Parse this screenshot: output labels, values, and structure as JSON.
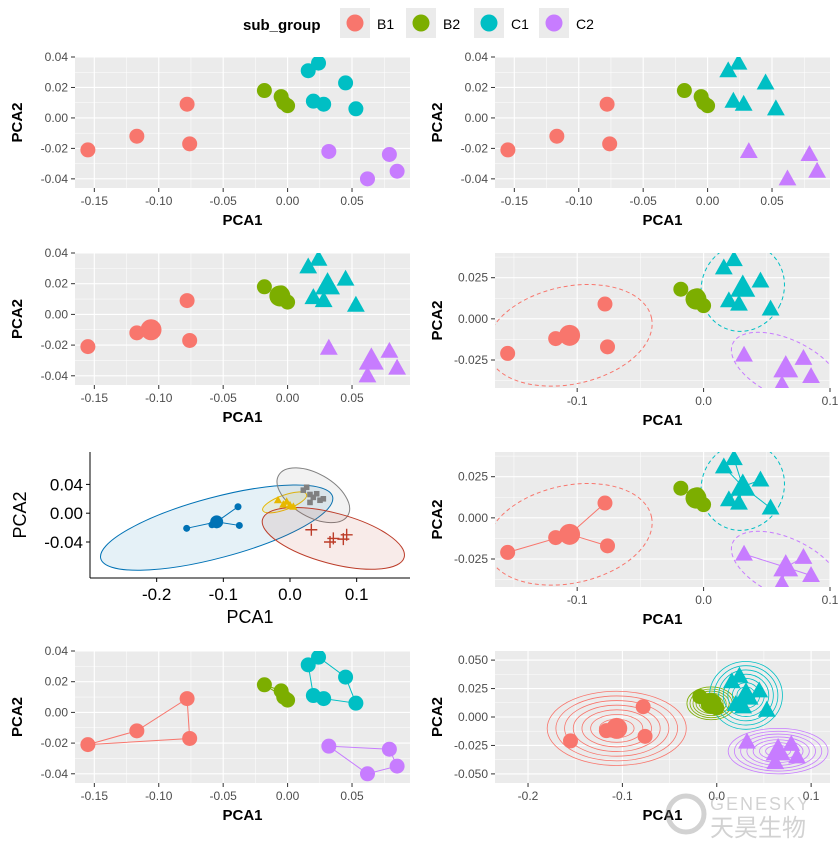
{
  "legend": {
    "title": "sub_group",
    "items": [
      {
        "label": "B1",
        "color": "#F8766D"
      },
      {
        "label": "B2",
        "color": "#7CAE00"
      },
      {
        "label": "C1",
        "color": "#00BFC4"
      },
      {
        "label": "C2",
        "color": "#C77CFF"
      }
    ]
  },
  "watermark": {
    "latin": "GENESKY",
    "chinese": "天昊生物"
  },
  "chart_data": [
    {
      "id": "p1",
      "type": "scatter",
      "theme": "grey",
      "xlabel": "PCA1",
      "ylabel": "PCA2",
      "xlim": [
        -0.165,
        0.095
      ],
      "ylim": [
        -0.046,
        0.04
      ],
      "xticks": [
        -0.15,
        -0.1,
        -0.05,
        0.0,
        0.05
      ],
      "xticklabels": [
        "-0.15",
        "-0.10",
        "-0.05",
        "0.00",
        "0.05"
      ],
      "yticks": [
        -0.04,
        -0.02,
        0.0,
        0.02,
        0.04
      ],
      "yticklabels": [
        "-0.04",
        "-0.02",
        "0.00",
        "0.02",
        "0.04"
      ],
      "shapes": false,
      "centroids": false
    },
    {
      "id": "p2",
      "type": "scatter",
      "theme": "grey",
      "xlabel": "PCA1",
      "ylabel": "PCA2",
      "xlim": [
        -0.165,
        0.095
      ],
      "ylim": [
        -0.046,
        0.04
      ],
      "xticks": [
        -0.15,
        -0.1,
        -0.05,
        0.0,
        0.05
      ],
      "xticklabels": [
        "-0.15",
        "-0.10",
        "-0.05",
        "0.00",
        "0.05"
      ],
      "yticks": [
        -0.04,
        -0.02,
        0.0,
        0.02,
        0.04
      ],
      "yticklabels": [
        "-0.04",
        "-0.02",
        "0.00",
        "0.02",
        "0.04"
      ],
      "shapes": true,
      "centroids": false
    },
    {
      "id": "p3",
      "type": "scatter",
      "theme": "grey",
      "xlabel": "PCA1",
      "ylabel": "PCA2",
      "xlim": [
        -0.165,
        0.095
      ],
      "ylim": [
        -0.046,
        0.04
      ],
      "xticks": [
        -0.15,
        -0.1,
        -0.05,
        0.0,
        0.05
      ],
      "xticklabels": [
        "-0.15",
        "-0.10",
        "-0.05",
        "0.00",
        "0.05"
      ],
      "yticks": [
        -0.04,
        -0.02,
        0.0,
        0.02,
        0.04
      ],
      "yticklabels": [
        "-0.04",
        "-0.02",
        "0.00",
        "0.02",
        "0.04"
      ],
      "shapes": true,
      "centroids": true
    },
    {
      "id": "p4",
      "type": "scatter",
      "theme": "grey",
      "xlabel": "PCA1",
      "ylabel": "PCA2",
      "xlim": [
        -0.165,
        0.1
      ],
      "ylim": [
        -0.042,
        0.04
      ],
      "xticks": [
        -0.1,
        0.0,
        0.1
      ],
      "xticklabels": [
        "-0.1",
        "0.0",
        "0.1"
      ],
      "yticks": [
        -0.025,
        0.0,
        0.025
      ],
      "yticklabels": [
        "-0.025",
        "0.000",
        "0.025"
      ],
      "shapes": true,
      "centroids": true,
      "ellipses": "dashed"
    },
    {
      "id": "p5",
      "type": "scatter",
      "theme": "classic",
      "xlabel": "PCA1",
      "ylabel": "PCA2",
      "xlim": [
        -0.3,
        0.18
      ],
      "ylim": [
        -0.09,
        0.085
      ],
      "xticks": [
        -0.2,
        -0.1,
        0.0,
        0.1
      ],
      "xticklabels": [
        "-0.2",
        "-0.1",
        "0.0",
        "0.1"
      ],
      "yticks": [
        -0.04,
        0.0,
        0.04
      ],
      "yticklabels": [
        "-0.04",
        "0.00",
        "0.04"
      ],
      "groups": [
        {
          "color": "#0072B5",
          "marker": "circle",
          "centroid": [
            -0.11,
            -0.012
          ],
          "points": [
            [
              -0.155,
              -0.021
            ],
            [
              -0.117,
              -0.016
            ],
            [
              -0.078,
              0.009
            ],
            [
              -0.076,
              -0.017
            ]
          ],
          "ellipse": {
            "cx": -0.11,
            "cy": -0.02,
            "rx": 0.18,
            "ry": 0.042,
            "angle": 15
          }
        },
        {
          "color": "#E7B800",
          "marker": "triangle",
          "points": [
            [
              -0.018,
              0.018
            ],
            [
              -0.005,
              0.016
            ],
            [
              -0.01,
              0.012
            ],
            [
              0.0,
              0.011
            ],
            [
              0.005,
              0.009
            ]
          ],
          "ellipse": {
            "cx": -0.008,
            "cy": 0.015,
            "rx": 0.035,
            "ry": 0.01,
            "angle": 20
          }
        },
        {
          "color": "#808080",
          "marker": "square",
          "points": [
            [
              0.02,
              0.032
            ],
            [
              0.025,
              0.036
            ],
            [
              0.03,
              0.026
            ],
            [
              0.035,
              0.022
            ],
            [
              0.04,
              0.027
            ],
            [
              0.045,
              0.018
            ],
            [
              0.05,
              0.02
            ],
            [
              0.03,
              0.015
            ]
          ],
          "ellipse": {
            "cx": 0.035,
            "cy": 0.025,
            "rx": 0.06,
            "ry": 0.03,
            "angle": -30
          }
        },
        {
          "color": "#BC3C29",
          "marker": "plus",
          "points": [
            [
              0.032,
              -0.023
            ],
            [
              0.06,
              -0.04
            ],
            [
              0.08,
              -0.036
            ],
            [
              0.085,
              -0.03
            ],
            [
              0.065,
              -0.035
            ]
          ],
          "ellipse": {
            "cx": 0.065,
            "cy": -0.035,
            "rx": 0.11,
            "ry": 0.035,
            "angle": -15
          }
        }
      ]
    },
    {
      "id": "p6",
      "type": "scatter",
      "theme": "grey",
      "xlabel": "PCA1",
      "ylabel": "PCA2",
      "xlim": [
        -0.165,
        0.1
      ],
      "ylim": [
        -0.042,
        0.04
      ],
      "xticks": [
        -0.1,
        0.0,
        0.1
      ],
      "xticklabels": [
        "-0.1",
        "0.0",
        "0.1"
      ],
      "yticks": [
        -0.025,
        0.0,
        0.025
      ],
      "yticklabels": [
        "-0.025",
        "0.000",
        "0.025"
      ],
      "shapes": true,
      "centroids": true,
      "ellipses": "dashed",
      "spokes": true
    },
    {
      "id": "p7",
      "type": "scatter",
      "theme": "grey",
      "xlabel": "PCA1",
      "ylabel": "PCA2",
      "xlim": [
        -0.165,
        0.095
      ],
      "ylim": [
        -0.046,
        0.04
      ],
      "xticks": [
        -0.15,
        -0.1,
        -0.05,
        0.0,
        0.05
      ],
      "xticklabels": [
        "-0.15",
        "-0.10",
        "-0.05",
        "0.00",
        "0.05"
      ],
      "yticks": [
        -0.04,
        -0.02,
        0.0,
        0.02,
        0.04
      ],
      "yticklabels": [
        "-0.04",
        "-0.02",
        "0.00",
        "0.02",
        "0.04"
      ],
      "shapes": false,
      "centroids": false,
      "hulls": true
    },
    {
      "id": "p8",
      "type": "scatter",
      "theme": "grey",
      "xlabel": "PCA1",
      "ylabel": "PCA2",
      "xlim": [
        -0.235,
        0.12
      ],
      "ylim": [
        -0.058,
        0.058
      ],
      "xticks": [
        -0.2,
        -0.1,
        0.0,
        0.1
      ],
      "xticklabels": [
        "-0.2",
        "-0.1",
        "0.0",
        "0.1"
      ],
      "yticks": [
        -0.05,
        -0.025,
        0.0,
        0.025,
        0.05
      ],
      "yticklabels": [
        "-0.050",
        "-0.025",
        "0.000",
        "0.025",
        "0.050"
      ],
      "shapes": true,
      "centroids": true,
      "density": true
    }
  ],
  "groups": [
    {
      "name": "B1",
      "color": "#F8766D",
      "marker": "circle",
      "points": [
        [
          -0.155,
          -0.021
        ],
        [
          -0.117,
          -0.012
        ],
        [
          -0.078,
          0.009
        ],
        [
          -0.076,
          -0.017
        ]
      ],
      "centroid": [
        -0.106,
        -0.01
      ]
    },
    {
      "name": "B2",
      "color": "#7CAE00",
      "marker": "circle",
      "points": [
        [
          -0.018,
          0.018
        ],
        [
          -0.005,
          0.014
        ],
        [
          0.0,
          0.008
        ],
        [
          -0.003,
          0.01
        ]
      ],
      "centroid": [
        -0.006,
        0.012
      ]
    },
    {
      "name": "C1",
      "color": "#00BFC4",
      "marker": "triangle",
      "points": [
        [
          0.016,
          0.031
        ],
        [
          0.024,
          0.036
        ],
        [
          0.02,
          0.011
        ],
        [
          0.028,
          0.009
        ],
        [
          0.045,
          0.023
        ],
        [
          0.053,
          0.006
        ]
      ],
      "centroid": [
        0.031,
        0.019
      ]
    },
    {
      "name": "C2",
      "color": "#C77CFF",
      "marker": "triangle",
      "points": [
        [
          0.032,
          -0.022
        ],
        [
          0.062,
          -0.04
        ],
        [
          0.079,
          -0.024
        ],
        [
          0.085,
          -0.035
        ]
      ],
      "centroid": [
        0.065,
        -0.03
      ]
    }
  ]
}
